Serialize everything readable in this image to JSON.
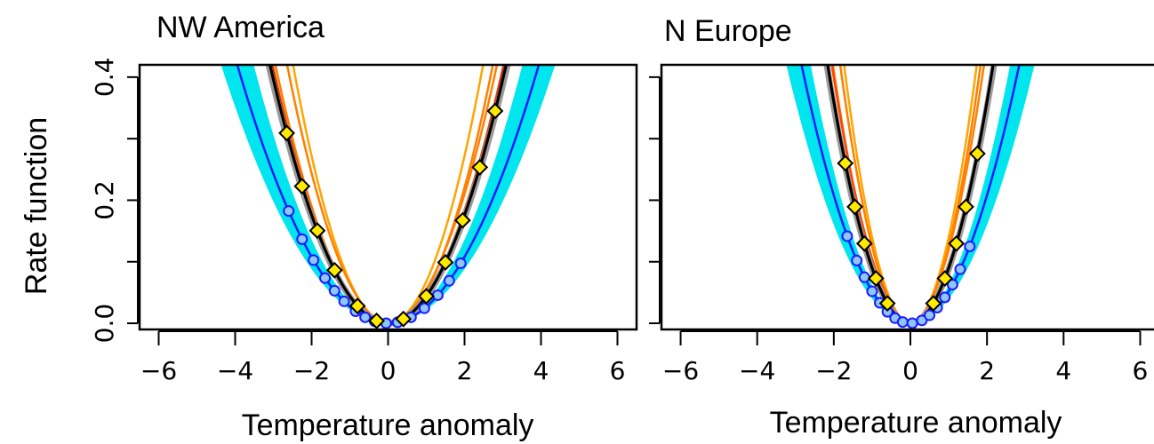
{
  "chart_data": [
    {
      "type": "line",
      "title": "NW America",
      "xlabel": "Temperature anomaly",
      "ylabel": "Rate function",
      "xlim": [
        -6.5,
        6.5
      ],
      "ylim": [
        -0.01,
        0.42
      ],
      "xticks": [
        "−6",
        "−4",
        "−2",
        "0",
        "2",
        "4",
        "6"
      ],
      "yticks": [
        "0.0",
        "0.2",
        "0.4"
      ],
      "band": {
        "color": "#00e5ee",
        "k_lower": 0.022,
        "k_upper": 0.034
      },
      "series": [
        {
          "color": "#ffa500",
          "k": 0.068,
          "c": 0.0,
          "markers": null
        },
        {
          "color": "#ff7f00",
          "k": 0.058,
          "c": 0.05,
          "markers": null
        },
        {
          "color": "#ff7f00",
          "k": 0.05,
          "c": -0.05,
          "markers": null
        },
        {
          "color": "#ff4500",
          "k": 0.046,
          "c": 0.0,
          "markers": null
        },
        {
          "color": "#8b0000",
          "k": 0.045,
          "c": 0.0,
          "markers": null
        },
        {
          "color": "#9a9a9a",
          "k": 0.043,
          "c": 0.0,
          "markers": null
        },
        {
          "color": "#000000",
          "k": 0.044,
          "c": 0.0,
          "markers": null
        },
        {
          "color": "#1a1aff",
          "k": 0.027,
          "c": 0.0,
          "markers": "circle",
          "mx": [
            -2.6,
            -2.25,
            -1.95,
            -1.65,
            -1.4,
            -1.15,
            -0.85,
            -0.6,
            -0.35,
            -0.05,
            0.25,
            0.6,
            0.95,
            1.3,
            1.6,
            1.9
          ]
        },
        {
          "color": "#000000",
          "k": 0.044,
          "c": 0.0,
          "markers": "diamond",
          "fill": "#ffea00",
          "mx": [
            -2.65,
            -2.25,
            -1.85,
            -1.4,
            -0.8,
            -0.3,
            0.4,
            1.0,
            1.5,
            1.95,
            2.4,
            2.8
          ]
        }
      ]
    },
    {
      "type": "line",
      "title": "N Europe",
      "xlabel": "Temperature anomaly",
      "ylabel": "",
      "xlim": [
        -6.5,
        6.5
      ],
      "ylim": [
        -0.01,
        0.42
      ],
      "xticks": [
        "−6",
        "−4",
        "−2",
        "0",
        "2",
        "4",
        "6"
      ],
      "yticks": [],
      "band": {
        "color": "#00e5ee",
        "k_lower": 0.04,
        "k_upper": 0.062
      },
      "series": [
        {
          "color": "#ffa500",
          "k": 0.14,
          "c": 0.0,
          "markers": null
        },
        {
          "color": "#ff7f00",
          "k": 0.125,
          "c": 0.0,
          "markers": null
        },
        {
          "color": "#ff7f00",
          "k": 0.108,
          "c": -0.05,
          "markers": null
        },
        {
          "color": "#ff4500",
          "k": 0.095,
          "c": 0.05,
          "markers": null
        },
        {
          "color": "#8b0000",
          "k": 0.092,
          "c": 0.0,
          "markers": null
        },
        {
          "color": "#9a9a9a",
          "k": 0.088,
          "c": 0.0,
          "markers": null
        },
        {
          "color": "#000000",
          "k": 0.09,
          "c": 0.0,
          "markers": null
        },
        {
          "color": "#1a1aff",
          "k": 0.052,
          "c": 0.0,
          "markers": "circle",
          "mx": [
            -1.65,
            -1.4,
            -1.2,
            -1.0,
            -0.8,
            -0.6,
            -0.4,
            -0.2,
            0.05,
            0.3,
            0.5,
            0.7,
            0.9,
            1.1,
            1.3,
            1.55
          ]
        },
        {
          "color": "#000000",
          "k": 0.09,
          "c": 0.0,
          "markers": "diamond",
          "fill": "#ffea00",
          "mx": [
            -1.7,
            -1.45,
            -1.2,
            -0.9,
            -0.6,
            0.6,
            0.9,
            1.2,
            1.45,
            1.75
          ]
        }
      ]
    }
  ]
}
